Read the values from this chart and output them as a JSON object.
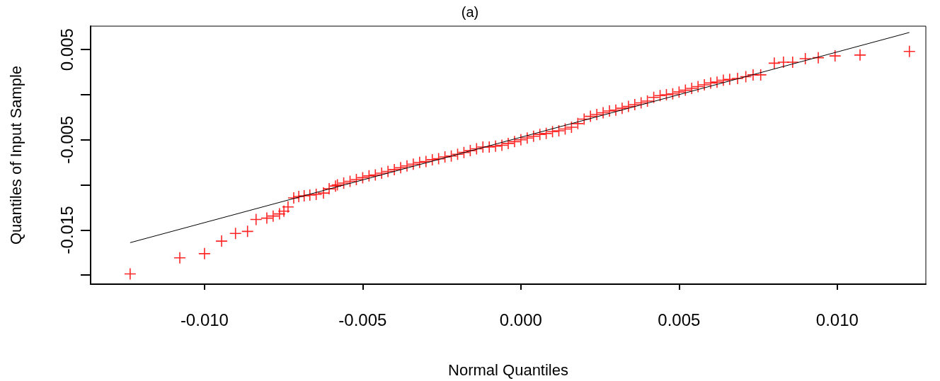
{
  "chart_data": {
    "type": "scatter",
    "title": "(a)",
    "xlabel": "Normal Quantiles",
    "ylabel": "Quantiles of Input Sample",
    "xlim": [
      -0.0136,
      0.0128
    ],
    "ylim": [
      -0.021,
      0.0076
    ],
    "xticks": [
      {
        "value": -0.01,
        "label": "-0.010"
      },
      {
        "value": -0.005,
        "label": "-0.005"
      },
      {
        "value": 0,
        "label": "0.000"
      },
      {
        "value": 0.005,
        "label": "0.005"
      },
      {
        "value": 0.01,
        "label": "0.010"
      }
    ],
    "yticks": [
      {
        "value": -0.02,
        "label": null
      },
      {
        "value": -0.015,
        "label": "-0.015"
      },
      {
        "value": -0.01,
        "label": null
      },
      {
        "value": -0.005,
        "label": "-0.005"
      },
      {
        "value": 0,
        "label": null
      },
      {
        "value": 0.005,
        "label": "0.005"
      }
    ],
    "grid": false,
    "series": [
      {
        "type": "scatter",
        "color": "#ff0000",
        "marker": "cross",
        "x": [
          -0.01235,
          -0.01078,
          -0.01,
          -0.00946,
          -0.00902,
          -0.00864,
          -0.00837,
          -0.00803,
          -0.00783,
          -0.00763,
          -0.00749,
          -0.00736,
          -0.00718,
          -0.00702,
          -0.00685,
          -0.00667,
          -0.00647,
          -0.00624,
          -0.00606,
          -0.00586,
          -0.0058,
          -0.0056,
          -0.0054,
          -0.0052,
          -0.005,
          -0.0048,
          -0.0046,
          -0.0044,
          -0.0042,
          -0.004,
          -0.0038,
          -0.0036,
          -0.0034,
          -0.0032,
          -0.003,
          -0.0028,
          -0.0026,
          -0.0024,
          -0.0022,
          -0.002,
          -0.0018,
          -0.0016,
          -0.0014,
          -0.0012,
          -0.001,
          -0.0008,
          -0.0006,
          -0.0004,
          -0.0002,
          0,
          0.0002,
          0.0004,
          0.0006,
          0.0008,
          0.001,
          0.0012,
          0.0014,
          0.0016,
          0.0018,
          0.002,
          0.0022,
          0.0024,
          0.0026,
          0.0028,
          0.003,
          0.0032,
          0.0034,
          0.0036,
          0.0038,
          0.004,
          0.0042,
          0.0044,
          0.0046,
          0.0048,
          0.005,
          0.0052,
          0.0054,
          0.0056,
          0.0058,
          0.006,
          0.0062,
          0.0064,
          0.0066,
          0.00685,
          0.00711,
          0.00734,
          0.00758,
          0.00801,
          0.0083,
          0.00859,
          0.00899,
          0.0094,
          0.00993,
          0.01072,
          0.01228
        ],
        "values": [
          -0.01986,
          -0.01808,
          -0.01762,
          -0.01623,
          -0.01538,
          -0.01515,
          -0.01383,
          -0.01368,
          -0.01345,
          -0.01321,
          -0.01291,
          -0.01244,
          -0.01144,
          -0.01128,
          -0.01121,
          -0.01113,
          -0.01105,
          -0.0109,
          -0.01043,
          -0.01012,
          -0.01,
          -0.0098,
          -0.0096,
          -0.0094,
          -0.0092,
          -0.009,
          -0.0089,
          -0.0087,
          -0.0085,
          -0.0083,
          -0.0081,
          -0.0079,
          -0.0077,
          -0.0075,
          -0.0074,
          -0.0072,
          -0.0071,
          -0.0069,
          -0.0068,
          -0.0066,
          -0.0064,
          -0.0062,
          -0.006,
          -0.0058,
          -0.0058,
          -0.0057,
          -0.0056,
          -0.0054,
          -0.0052,
          -0.005,
          -0.0048,
          -0.0046,
          -0.0044,
          -0.0043,
          -0.0041,
          -0.004,
          -0.0038,
          -0.0036,
          -0.0032,
          -0.0027,
          -0.0024,
          -0.0022,
          -0.002,
          -0.0018,
          -0.0017,
          -0.0015,
          -0.0013,
          -0.0011,
          -0.0009,
          -0.0007,
          -0.0003,
          -0.0001,
          0,
          0.0001,
          0.0003,
          0.0005,
          0.0007,
          0.0009,
          0.0011,
          0.0013,
          0.0014,
          0.0016,
          0.0017,
          0.0018,
          0.002,
          0.0022,
          0.0022,
          0.0035,
          0.0036,
          0.0036,
          0.004,
          0.0041,
          0.0043,
          0.0044,
          0.0048
        ]
      },
      {
        "type": "line",
        "color": "#000000",
        "marker": "none",
        "line_style": "solid",
        "x": [
          -0.01235,
          0.01228
        ],
        "values": [
          -0.0164,
          0.0069
        ]
      }
    ]
  }
}
